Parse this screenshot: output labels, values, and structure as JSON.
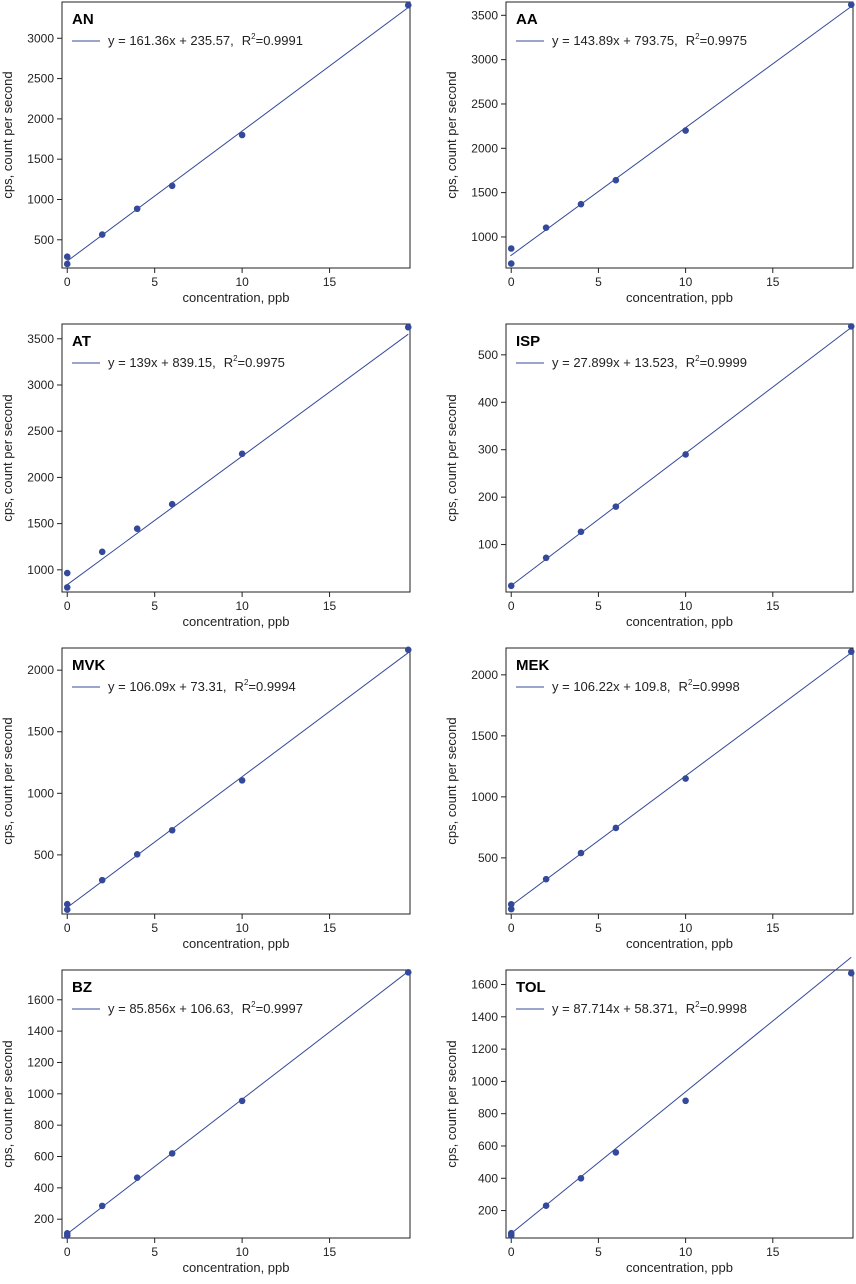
{
  "chart_data": [
    {
      "type": "scatter",
      "title": "AN",
      "xlabel": "concentration, ppb",
      "ylabel": "cps, count per second",
      "xlim": [
        -0.3,
        19.6
      ],
      "ylim": [
        150,
        3450
      ],
      "xticks": [
        0,
        5,
        10,
        15
      ],
      "yticks": [
        500,
        1000,
        1500,
        2000,
        2500,
        3000
      ],
      "x": [
        0,
        0,
        2,
        4,
        6,
        10,
        19.5
      ],
      "y": [
        200,
        290,
        565,
        885,
        1170,
        1800,
        3410
      ],
      "fit": {
        "slope": 161.36,
        "intercept": 235.57
      },
      "legend": {
        "equation": "y = 161.36x + 235.57,",
        "r2_label": "R",
        "r2_exp": "2",
        "r2_value": "=0.9991"
      },
      "grid": false,
      "legend_placement": "top-left",
      "colors": {
        "points": "#34499a",
        "line": "#34499a"
      }
    },
    {
      "type": "scatter",
      "title": "AA",
      "xlabel": "concentration, ppb",
      "ylabel": "cps, count per second",
      "xlim": [
        -0.3,
        19.6
      ],
      "ylim": [
        650,
        3650
      ],
      "xticks": [
        0,
        5,
        10,
        15
      ],
      "yticks": [
        1000,
        1500,
        2000,
        2500,
        3000,
        3500
      ],
      "x": [
        0,
        0,
        2,
        4,
        6,
        10,
        19.5
      ],
      "y": [
        700,
        870,
        1105,
        1370,
        1640,
        2200,
        3620
      ],
      "fit": {
        "slope": 143.89,
        "intercept": 793.75
      },
      "legend": {
        "equation": "y = 143.89x + 793.75,",
        "r2_label": "R",
        "r2_exp": "2",
        "r2_value": "=0.9975"
      },
      "grid": false,
      "legend_placement": "top-left",
      "colors": {
        "points": "#34499a",
        "line": "#34499a"
      }
    },
    {
      "type": "scatter",
      "title": "AT",
      "xlabel": "concentration, ppb",
      "ylabel": "cps, count per second",
      "xlim": [
        -0.3,
        19.6
      ],
      "ylim": [
        760,
        3660
      ],
      "xticks": [
        0,
        5,
        10,
        15
      ],
      "yticks": [
        1000,
        1500,
        2000,
        2500,
        3000,
        3500
      ],
      "x": [
        0,
        0,
        2,
        4,
        6,
        10,
        19.5
      ],
      "y": [
        810,
        965,
        1195,
        1445,
        1710,
        2255,
        3625
      ],
      "fit": {
        "slope": 139,
        "intercept": 839.15
      },
      "legend": {
        "equation": "y = 139x + 839.15,",
        "r2_label": "R",
        "r2_exp": "2",
        "r2_value": "=0.9975"
      },
      "grid": false,
      "legend_placement": "top-left",
      "colors": {
        "points": "#34499a",
        "line": "#34499a"
      }
    },
    {
      "type": "scatter",
      "title": "ISP",
      "xlabel": "concentration, ppb",
      "ylabel": "cps, count per second",
      "xlim": [
        -0.3,
        19.6
      ],
      "ylim": [
        0,
        565
      ],
      "xticks": [
        0,
        5,
        10,
        15
      ],
      "yticks": [
        100,
        200,
        300,
        400,
        500
      ],
      "x": [
        0,
        2,
        4,
        6,
        10,
        19.5
      ],
      "y": [
        13,
        72,
        127,
        180,
        290,
        560
      ],
      "fit": {
        "slope": 27.899,
        "intercept": 13.523
      },
      "legend": {
        "equation": "y = 27.899x + 13.523,",
        "r2_label": "R",
        "r2_exp": "2",
        "r2_value": "=0.9999"
      },
      "grid": false,
      "legend_placement": "top-left",
      "colors": {
        "points": "#34499a",
        "line": "#34499a"
      }
    },
    {
      "type": "scatter",
      "title": "MVK",
      "xlabel": "concentration, ppb",
      "ylabel": "cps, count per second",
      "xlim": [
        -0.3,
        19.6
      ],
      "ylim": [
        20,
        2180
      ],
      "xticks": [
        0,
        5,
        10,
        15
      ],
      "yticks": [
        500,
        1000,
        1500,
        2000
      ],
      "x": [
        0,
        0,
        2,
        4,
        6,
        10,
        19.5
      ],
      "y": [
        55,
        100,
        295,
        505,
        700,
        1105,
        2165
      ],
      "fit": {
        "slope": 106.09,
        "intercept": 73.31
      },
      "legend": {
        "equation": "y = 106.09x + 73.31,",
        "r2_label": "R",
        "r2_exp": "2",
        "r2_value": "=0.9994"
      },
      "grid": false,
      "legend_placement": "top-left",
      "colors": {
        "points": "#34499a",
        "line": "#34499a"
      }
    },
    {
      "type": "scatter",
      "title": "MEK",
      "xlabel": "concentration, ppb",
      "ylabel": "cps, count per second",
      "xlim": [
        -0.3,
        19.6
      ],
      "ylim": [
        40,
        2220
      ],
      "xticks": [
        0,
        5,
        10,
        15
      ],
      "yticks": [
        500,
        1000,
        1500,
        2000
      ],
      "x": [
        0,
        0,
        2,
        4,
        6,
        10,
        19.5
      ],
      "y": [
        80,
        120,
        325,
        540,
        745,
        1150,
        2190
      ],
      "fit": {
        "slope": 106.22,
        "intercept": 109.8
      },
      "legend": {
        "equation": "y = 106.22x + 109.8,",
        "r2_label": "R",
        "r2_exp": "2",
        "r2_value": "=0.9998"
      },
      "grid": false,
      "legend_placement": "top-left",
      "colors": {
        "points": "#34499a",
        "line": "#34499a"
      }
    },
    {
      "type": "scatter",
      "title": "BZ",
      "xlabel": "concentration, ppb",
      "ylabel": "cps, count per second",
      "xlim": [
        -0.3,
        19.6
      ],
      "ylim": [
        80,
        1790
      ],
      "xticks": [
        0,
        5,
        10,
        15
      ],
      "yticks": [
        200,
        400,
        600,
        800,
        1000,
        1200,
        1400,
        1600
      ],
      "x": [
        0,
        0,
        2,
        4,
        6,
        10,
        19.5
      ],
      "y": [
        95,
        110,
        285,
        465,
        620,
        955,
        1775
      ],
      "fit": {
        "slope": 85.856,
        "intercept": 106.63
      },
      "legend": {
        "equation": "y = 85.856x + 106.63,",
        "r2_label": "R",
        "r2_exp": "2",
        "r2_value": "=0.9997"
      },
      "grid": false,
      "legend_placement": "top-left",
      "colors": {
        "points": "#34499a",
        "line": "#34499a"
      }
    },
    {
      "type": "scatter",
      "title": "TOL",
      "xlabel": "concentration, ppb",
      "ylabel": "cps, count per second",
      "xlim": [
        -0.3,
        19.6
      ],
      "ylim": [
        30,
        1690
      ],
      "xticks": [
        0,
        5,
        10,
        15
      ],
      "yticks": [
        200,
        400,
        600,
        800,
        1000,
        1200,
        1400,
        1600
      ],
      "x": [
        0,
        0,
        2,
        4,
        6,
        10,
        19.5
      ],
      "y": [
        45,
        60,
        230,
        400,
        560,
        880,
        1670
      ],
      "fit": {
        "slope": 87.714,
        "intercept": 58.371
      },
      "legend": {
        "equation": "y = 87.714x + 58.371,",
        "r2_label": "R",
        "r2_exp": "2",
        "r2_value": "=0.9998"
      },
      "grid": false,
      "legend_placement": "top-left",
      "colors": {
        "points": "#34499a",
        "line": "#34499a"
      }
    }
  ]
}
